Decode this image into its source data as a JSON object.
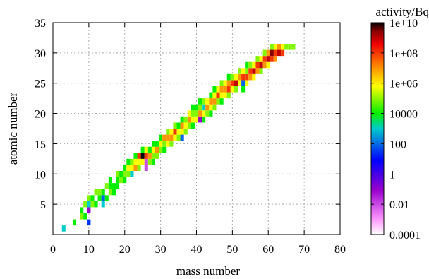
{
  "chart_data": {
    "type": "heatmap",
    "title": "",
    "xlabel": "mass number",
    "ylabel": "atomic number",
    "colorbar_label": "activity/Bq",
    "xlim": [
      0,
      80
    ],
    "ylim": [
      0,
      35
    ],
    "xticks": [
      0,
      10,
      20,
      30,
      40,
      50,
      60,
      70,
      80
    ],
    "yticks": [
      5,
      10,
      15,
      20,
      25,
      30,
      35
    ],
    "colorbar_scale": "log",
    "colorbar_range": [
      0.0001,
      10000000000
    ],
    "colorbar_ticks": [
      "1e+10",
      "1e+08",
      "1e+06",
      "10000",
      "100",
      "1",
      "0.01",
      "0.0001"
    ],
    "grid": true,
    "cell_value_unit": "log10(activity/Bq)",
    "cells": [
      [
        3,
        1,
        3
      ],
      [
        6,
        2,
        4
      ],
      [
        8,
        3,
        5
      ],
      [
        8,
        4,
        4
      ],
      [
        9,
        3,
        4
      ],
      [
        9,
        5,
        5
      ],
      [
        10,
        2,
        1.5
      ],
      [
        10,
        4,
        -1
      ],
      [
        10,
        5,
        3
      ],
      [
        10,
        6,
        5
      ],
      [
        11,
        5,
        5
      ],
      [
        11,
        6,
        4
      ],
      [
        12,
        5,
        4
      ],
      [
        12,
        7,
        5
      ],
      [
        13,
        6,
        4
      ],
      [
        13,
        7,
        5
      ],
      [
        14,
        5,
        3
      ],
      [
        14,
        6,
        2
      ],
      [
        14,
        7,
        4
      ],
      [
        15,
        6,
        4
      ],
      [
        15,
        8,
        5
      ],
      [
        16,
        7,
        5
      ],
      [
        16,
        8,
        4
      ],
      [
        16,
        9,
        4
      ],
      [
        17,
        7,
        4
      ],
      [
        17,
        8,
        4
      ],
      [
        18,
        8,
        4
      ],
      [
        18,
        9,
        4
      ],
      [
        18,
        10,
        5
      ],
      [
        19,
        9,
        5
      ],
      [
        19,
        10,
        4
      ],
      [
        20,
        9,
        4
      ],
      [
        20,
        10,
        5
      ],
      [
        20,
        11,
        4
      ],
      [
        21,
        10,
        5
      ],
      [
        21,
        11,
        6
      ],
      [
        21,
        12,
        4
      ],
      [
        22,
        10,
        3
      ],
      [
        22,
        11,
        6
      ],
      [
        22,
        12,
        5
      ],
      [
        23,
        11,
        7
      ],
      [
        23,
        12,
        6
      ],
      [
        23,
        13,
        4
      ],
      [
        24,
        11,
        5
      ],
      [
        24,
        12,
        6
      ],
      [
        24,
        13,
        8
      ],
      [
        25,
        12,
        6
      ],
      [
        25,
        13,
        10
      ],
      [
        25,
        14,
        4
      ],
      [
        26,
        11,
        -2
      ],
      [
        26,
        12,
        -2
      ],
      [
        26,
        13,
        8
      ],
      [
        26,
        14,
        6
      ],
      [
        27,
        12,
        5
      ],
      [
        27,
        13,
        7
      ],
      [
        27,
        14,
        4
      ],
      [
        28,
        12,
        4
      ],
      [
        28,
        13,
        5
      ],
      [
        28,
        14,
        6
      ],
      [
        28,
        15,
        4
      ],
      [
        29,
        13,
        5
      ],
      [
        29,
        14,
        7
      ],
      [
        29,
        15,
        4
      ],
      [
        30,
        14,
        5
      ],
      [
        30,
        15,
        6
      ],
      [
        30,
        16,
        4
      ],
      [
        31,
        14,
        4
      ],
      [
        31,
        15,
        5
      ],
      [
        31,
        16,
        7
      ],
      [
        32,
        15,
        6
      ],
      [
        32,
        16,
        7
      ],
      [
        32,
        17,
        5
      ],
      [
        33,
        15,
        5
      ],
      [
        33,
        16,
        7
      ],
      [
        33,
        17,
        6
      ],
      [
        34,
        16,
        6
      ],
      [
        34,
        17,
        8
      ],
      [
        34,
        18,
        5
      ],
      [
        35,
        16,
        5
      ],
      [
        35,
        17,
        6
      ],
      [
        35,
        18,
        4
      ],
      [
        36,
        16,
        2
      ],
      [
        36,
        17,
        6
      ],
      [
        36,
        18,
        7
      ],
      [
        36,
        19,
        4
      ],
      [
        37,
        17,
        5
      ],
      [
        37,
        18,
        6
      ],
      [
        37,
        19,
        5
      ],
      [
        38,
        18,
        5
      ],
      [
        38,
        19,
        7
      ],
      [
        38,
        20,
        6
      ],
      [
        39,
        18,
        4
      ],
      [
        39,
        19,
        6
      ],
      [
        39,
        20,
        5
      ],
      [
        39,
        21,
        4
      ],
      [
        40,
        19,
        6
      ],
      [
        40,
        20,
        5
      ],
      [
        40,
        21,
        4
      ],
      [
        41,
        19,
        -1
      ],
      [
        41,
        20,
        7
      ],
      [
        41,
        21,
        5
      ],
      [
        41,
        22,
        4
      ],
      [
        42,
        19,
        4
      ],
      [
        42,
        20,
        6
      ],
      [
        42,
        21,
        3
      ],
      [
        42,
        22,
        5
      ],
      [
        43,
        20,
        5
      ],
      [
        43,
        21,
        7
      ],
      [
        43,
        22,
        6
      ],
      [
        44,
        20,
        4
      ],
      [
        44,
        21,
        6
      ],
      [
        44,
        22,
        7
      ],
      [
        44,
        23,
        4
      ],
      [
        45,
        21,
        5
      ],
      [
        45,
        22,
        7
      ],
      [
        45,
        23,
        6
      ],
      [
        45,
        24,
        4
      ],
      [
        46,
        22,
        5
      ],
      [
        46,
        23,
        8
      ],
      [
        46,
        24,
        6
      ],
      [
        47,
        22,
        4
      ],
      [
        47,
        23,
        6
      ],
      [
        47,
        24,
        7
      ],
      [
        47,
        25,
        5
      ],
      [
        48,
        23,
        6
      ],
      [
        48,
        24,
        7
      ],
      [
        48,
        25,
        6
      ],
      [
        49,
        23,
        5
      ],
      [
        49,
        24,
        8
      ],
      [
        49,
        25,
        7
      ],
      [
        49,
        26,
        4
      ],
      [
        50,
        24,
        6
      ],
      [
        50,
        25,
        8
      ],
      [
        50,
        26,
        5
      ],
      [
        51,
        24,
        5
      ],
      [
        51,
        25,
        9
      ],
      [
        51,
        26,
        6
      ],
      [
        52,
        25,
        6
      ],
      [
        52,
        26,
        7
      ],
      [
        52,
        27,
        5
      ],
      [
        53,
        24,
        4
      ],
      [
        53,
        25,
        2
      ],
      [
        53,
        26,
        8
      ],
      [
        53,
        27,
        6
      ],
      [
        54,
        25,
        6
      ],
      [
        54,
        26,
        8
      ],
      [
        54,
        27,
        5
      ],
      [
        54,
        28,
        4
      ],
      [
        55,
        26,
        7
      ],
      [
        55,
        27,
        8
      ],
      [
        55,
        28,
        5
      ],
      [
        56,
        26,
        6
      ],
      [
        56,
        27,
        9
      ],
      [
        56,
        28,
        6
      ],
      [
        57,
        27,
        7
      ],
      [
        57,
        28,
        8
      ],
      [
        57,
        29,
        5
      ],
      [
        58,
        27,
        5
      ],
      [
        58,
        28,
        9
      ],
      [
        58,
        29,
        6
      ],
      [
        59,
        28,
        7
      ],
      [
        59,
        29,
        8
      ],
      [
        59,
        30,
        5
      ],
      [
        60,
        28,
        6
      ],
      [
        60,
        29,
        9
      ],
      [
        60,
        30,
        7
      ],
      [
        61,
        29,
        8
      ],
      [
        61,
        30,
        9.5
      ],
      [
        61,
        31,
        5
      ],
      [
        62,
        29,
        7
      ],
      [
        62,
        30,
        8
      ],
      [
        62,
        31,
        6
      ],
      [
        63,
        30,
        9
      ],
      [
        63,
        31,
        7
      ],
      [
        64,
        30,
        8
      ],
      [
        64,
        31,
        6
      ],
      [
        65,
        31,
        5
      ],
      [
        66,
        31,
        5
      ],
      [
        67,
        31,
        5
      ]
    ]
  }
}
